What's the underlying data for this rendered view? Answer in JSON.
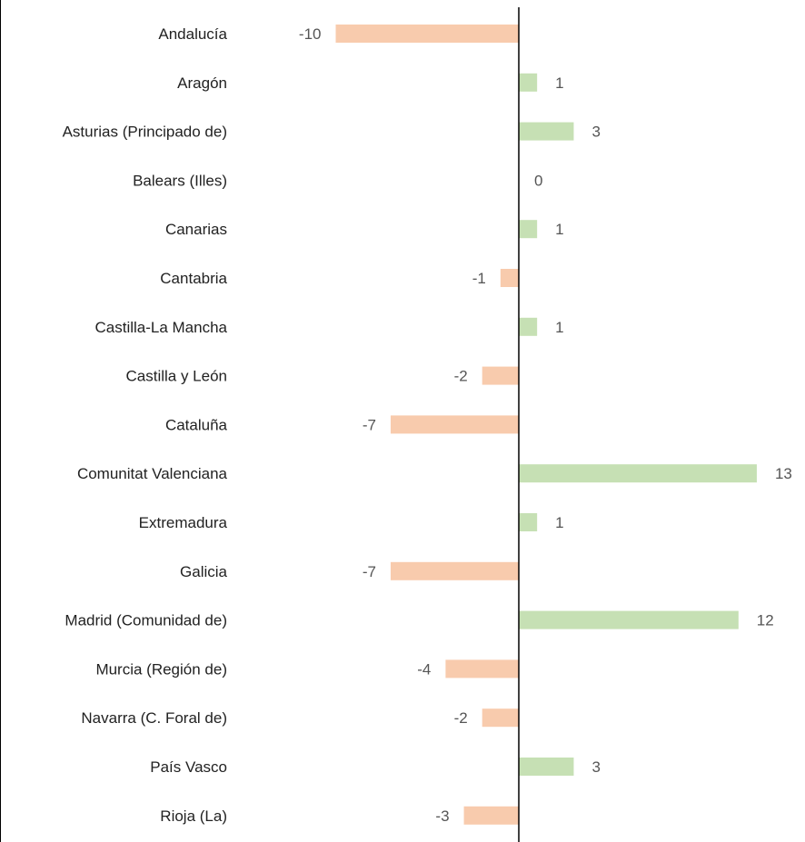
{
  "chart_data": {
    "type": "bar",
    "orientation": "horizontal",
    "title": "",
    "xlabel": "",
    "ylabel": "",
    "xlim": [
      -10,
      13
    ],
    "grid": false,
    "legend": "none",
    "colors": {
      "positive": "#c6e0b4",
      "negative": "#f8cbad",
      "axis": "#000000"
    },
    "categories": [
      "Andalucía",
      "Aragón",
      "Asturias (Principado de)",
      "Balears (Illes)",
      "Canarias",
      "Cantabria",
      "Castilla-La Mancha",
      "Castilla y León",
      "Cataluña",
      "Comunitat Valenciana",
      "Extremadura",
      "Galicia",
      "Madrid (Comunidad de)",
      "Murcia (Región de)",
      "Navarra (C. Foral de)",
      "País Vasco",
      "Rioja (La)"
    ],
    "values": [
      -10,
      1,
      3,
      0,
      1,
      -1,
      1,
      -2,
      -7,
      13,
      1,
      -7,
      12,
      -4,
      -2,
      3,
      -3
    ]
  }
}
